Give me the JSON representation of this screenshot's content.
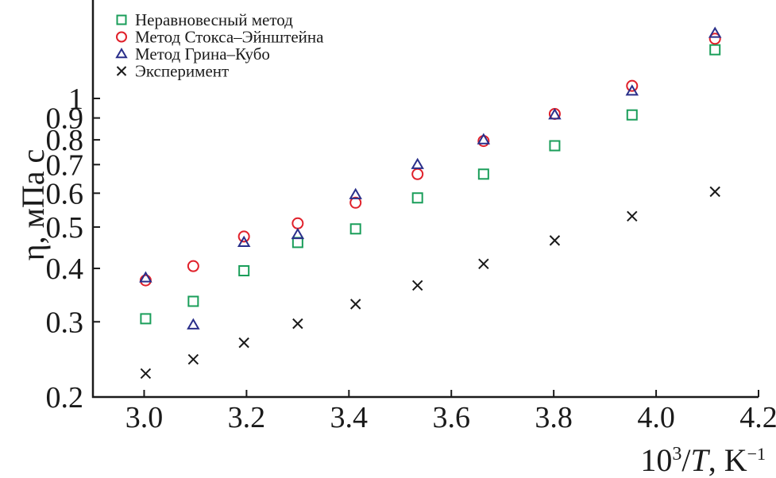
{
  "chart_data": {
    "type": "scatter",
    "x_scale": "linear",
    "y_scale": "log",
    "xlim": [
      2.9,
      4.2
    ],
    "ylim": [
      0.2,
      1.7
    ],
    "x_ticks": [
      {
        "value": 3.0,
        "label": "3.0"
      },
      {
        "value": 3.2,
        "label": "3.2"
      },
      {
        "value": 3.4,
        "label": "3.4"
      },
      {
        "value": 3.6,
        "label": "3.6"
      },
      {
        "value": 3.8,
        "label": "3.8"
      },
      {
        "value": 4.0,
        "label": "4.0"
      },
      {
        "value": 4.2,
        "label": "4.2"
      }
    ],
    "y_ticks": [
      {
        "value": 0.2,
        "label": "0.2"
      },
      {
        "value": 0.3,
        "label": "0.3"
      },
      {
        "value": 0.4,
        "label": "0.4"
      },
      {
        "value": 0.5,
        "label": "0.5"
      },
      {
        "value": 0.6,
        "label": "0.6"
      },
      {
        "value": 0.7,
        "label": "0.7"
      },
      {
        "value": 0.8,
        "label": "0.8"
      },
      {
        "value": 0.9,
        "label": "0.9"
      },
      {
        "value": 1.0,
        "label": "1"
      }
    ],
    "ylabel": "η, мПа с",
    "xlabel_base": "10",
    "xlabel_exp": "3",
    "xlabel_mid": "/",
    "xlabel_var": "T",
    "xlabel_unit": ", K",
    "xlabel_unit_exp": "−1",
    "legend_position": "top-left",
    "series": [
      {
        "name": "Неравновесный метод",
        "marker": "square",
        "color": "#1a9e5a",
        "x": [
          3.003,
          3.096,
          3.195,
          3.3,
          3.413,
          3.534,
          3.663,
          3.802,
          3.953,
          4.115
        ],
        "y": [
          0.305,
          0.335,
          0.395,
          0.46,
          0.495,
          0.585,
          0.665,
          0.775,
          0.915,
          1.3
        ]
      },
      {
        "name": "Метод Стокса–Эйнштейна",
        "marker": "circle",
        "color": "#e0202a",
        "x": [
          3.003,
          3.096,
          3.195,
          3.3,
          3.413,
          3.534,
          3.663,
          3.802,
          3.953,
          4.115
        ],
        "y": [
          0.375,
          0.405,
          0.475,
          0.51,
          0.57,
          0.665,
          0.795,
          0.92,
          1.07,
          1.38
        ]
      },
      {
        "name": "Метод Грина–Кубо",
        "marker": "triangle",
        "color": "#2a2f8a",
        "x": [
          3.003,
          3.096,
          3.195,
          3.3,
          3.413,
          3.534,
          3.663,
          3.802,
          3.953,
          4.115
        ],
        "y": [
          0.38,
          0.295,
          0.46,
          0.48,
          0.595,
          0.7,
          0.8,
          0.915,
          1.04,
          1.42
        ]
      },
      {
        "name": "Эксперимент",
        "marker": "cross",
        "color": "#1a1a1a",
        "x": [
          3.003,
          3.096,
          3.195,
          3.3,
          3.413,
          3.534,
          3.663,
          3.802,
          3.953,
          4.115
        ],
        "y": [
          0.227,
          0.245,
          0.268,
          0.297,
          0.33,
          0.365,
          0.41,
          0.465,
          0.53,
          0.605
        ]
      }
    ]
  }
}
